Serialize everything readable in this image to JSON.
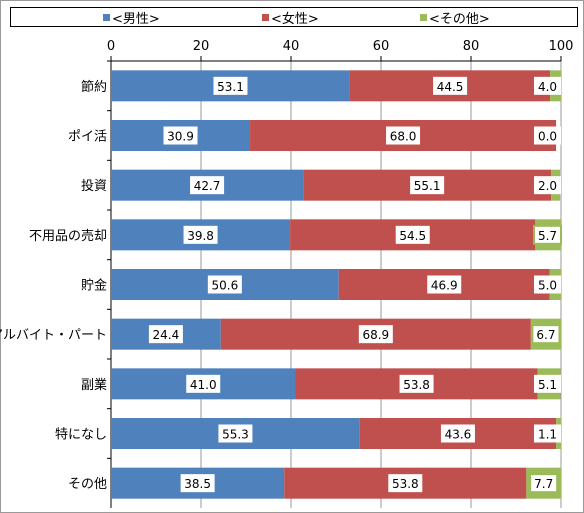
{
  "legend": {
    "items": [
      {
        "label": "<男性>",
        "color": "#4f81bd"
      },
      {
        "label": "<女性>",
        "color": "#c0504d"
      },
      {
        "label": "<その他>",
        "color": "#9bbb59"
      }
    ]
  },
  "chart_data": {
    "type": "bar",
    "orientation": "horizontal",
    "stacked": true,
    "categories": [
      "節約",
      "ポイ活",
      "投資",
      "不用品の売却",
      "貯金",
      "アルバイト・パート",
      "副業",
      "特になし",
      "その他"
    ],
    "series": [
      {
        "name": "<男性>",
        "color": "#4f81bd",
        "values": [
          53.1,
          30.9,
          42.7,
          39.8,
          50.6,
          24.4,
          41.0,
          55.3,
          38.5
        ]
      },
      {
        "name": "<女性>",
        "color": "#c0504d",
        "values": [
          44.5,
          68.0,
          55.1,
          54.5,
          46.9,
          68.9,
          53.8,
          43.6,
          53.8
        ]
      },
      {
        "name": "<その他>",
        "color": "#9bbb59",
        "values": [
          4.0,
          0.0,
          2.0,
          5.7,
          5.0,
          6.7,
          5.1,
          1.1,
          7.7
        ]
      }
    ],
    "value_labels": [
      [
        "53.1",
        "30.9",
        "42.7",
        "39.8",
        "50.6",
        "24.4",
        "41.0",
        "55.3",
        "38.5"
      ],
      [
        "44.5",
        "68.0",
        "55.1",
        "54.5",
        "46.9",
        "68.9",
        "53.8",
        "43.6",
        "53.8"
      ],
      [
        "4.0",
        "0.0",
        "2.0",
        "5.7",
        "5.0",
        "6.7",
        "5.1",
        "1.1",
        "7.7"
      ]
    ],
    "xlim": [
      0,
      100
    ],
    "xticks": [
      "0",
      "20",
      "40",
      "60",
      "80",
      "100"
    ],
    "axis_position": "top",
    "grid": true,
    "legend_position": "top"
  }
}
